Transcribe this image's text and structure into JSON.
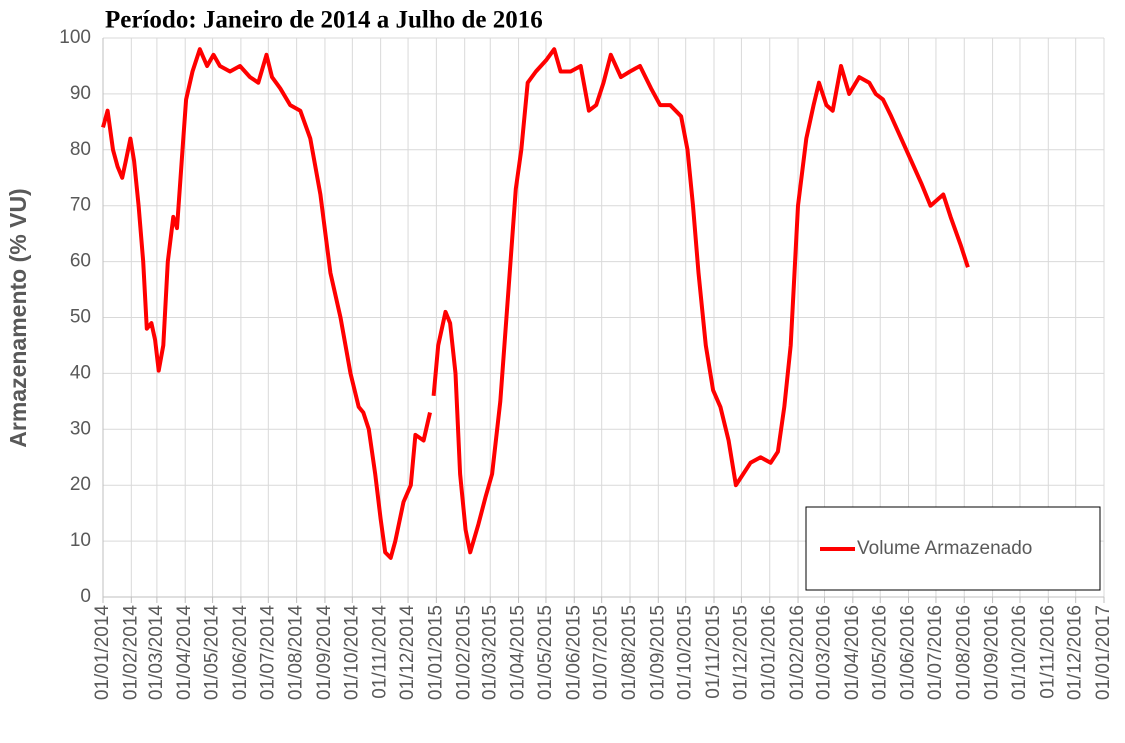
{
  "chart_data": {
    "type": "line",
    "title": "Período: Janeiro de 2014 a Julho de 2016",
    "y_label": "Armazenamento (% VU)",
    "grid": true,
    "legend": "lower right",
    "ylim": [
      0,
      100
    ],
    "yticks": [
      0,
      10,
      20,
      30,
      40,
      50,
      60,
      70,
      80,
      90,
      100
    ],
    "xlim": [
      "2014-01-01",
      "2017-01-01"
    ],
    "xticks": [
      {
        "value": "2014-01-01",
        "label": "01/01/2014"
      },
      {
        "value": "2014-02-01",
        "label": "01/02/2014"
      },
      {
        "value": "2014-03-01",
        "label": "01/03/2014"
      },
      {
        "value": "2014-04-01",
        "label": "01/04/2014"
      },
      {
        "value": "2014-05-01",
        "label": "01/05/2014"
      },
      {
        "value": "2014-06-01",
        "label": "01/06/2014"
      },
      {
        "value": "2014-07-01",
        "label": "01/07/2014"
      },
      {
        "value": "2014-08-01",
        "label": "01/08/2014"
      },
      {
        "value": "2014-09-01",
        "label": "01/09/2014"
      },
      {
        "value": "2014-10-01",
        "label": "01/10/2014"
      },
      {
        "value": "2014-11-01",
        "label": "01/11/2014"
      },
      {
        "value": "2014-12-01",
        "label": "01/12/2014"
      },
      {
        "value": "2015-01-01",
        "label": "01/01/2015"
      },
      {
        "value": "2015-02-01",
        "label": "01/02/2015"
      },
      {
        "value": "2015-03-01",
        "label": "01/03/2015"
      },
      {
        "value": "2015-04-01",
        "label": "01/04/2015"
      },
      {
        "value": "2015-05-01",
        "label": "01/05/2015"
      },
      {
        "value": "2015-06-01",
        "label": "01/06/2015"
      },
      {
        "value": "2015-07-01",
        "label": "01/07/2015"
      },
      {
        "value": "2015-08-01",
        "label": "01/08/2015"
      },
      {
        "value": "2015-09-01",
        "label": "01/09/2015"
      },
      {
        "value": "2015-10-01",
        "label": "01/10/2015"
      },
      {
        "value": "2015-11-01",
        "label": "01/11/2015"
      },
      {
        "value": "2015-12-01",
        "label": "01/12/2015"
      },
      {
        "value": "2016-01-01",
        "label": "01/01/2016"
      },
      {
        "value": "2016-02-01",
        "label": "01/02/2016"
      },
      {
        "value": "2016-03-01",
        "label": "01/03/2016"
      },
      {
        "value": "2016-04-01",
        "label": "01/04/2016"
      },
      {
        "value": "2016-05-01",
        "label": "01/05/2016"
      },
      {
        "value": "2016-06-01",
        "label": "01/06/2016"
      },
      {
        "value": "2016-07-01",
        "label": "01/07/2016"
      },
      {
        "value": "2016-08-01",
        "label": "01/08/2016"
      },
      {
        "value": "2016-09-01",
        "label": "01/09/2016"
      },
      {
        "value": "2016-10-01",
        "label": "01/10/2016"
      },
      {
        "value": "2016-11-01",
        "label": "01/11/2016"
      },
      {
        "value": "2016-12-01",
        "label": "01/12/2016"
      },
      {
        "value": "2017-01-01",
        "label": "01/01/2017"
      }
    ],
    "x": [
      "2014-01-01",
      "2014-01-06",
      "2014-01-12",
      "2014-01-17",
      "2014-01-22",
      "2014-01-26",
      "2014-01-31",
      "2014-02-04",
      "2014-02-09",
      "2014-02-14",
      "2014-02-18",
      "2014-02-23",
      "2014-02-27",
      "2014-03-03",
      "2014-03-08",
      "2014-03-13",
      "2014-03-19",
      "2014-03-23",
      "2014-03-29",
      "2014-04-02",
      "2014-04-09",
      "2014-04-17",
      "2014-04-25",
      "2014-05-02",
      "2014-05-09",
      "2014-05-20",
      "2014-05-31",
      "2014-06-11",
      "2014-06-20",
      "2014-06-29",
      "2014-07-05",
      "2014-07-14",
      "2014-07-25",
      "2014-08-05",
      "2014-08-16",
      "2014-08-27",
      "2014-09-07",
      "2014-09-18",
      "2014-09-29",
      "2014-10-08",
      "2014-10-13",
      "2014-10-19",
      "2014-10-26",
      "2014-11-01",
      "2014-11-06",
      "2014-11-12",
      "2014-11-17",
      "2014-11-26",
      "2014-12-04",
      "2014-12-09",
      "2014-12-18",
      "2014-12-25",
      "2014-12-28",
      "2014-12-29",
      "2015-01-03",
      "2015-01-11",
      "2015-01-16",
      "2015-01-22",
      "2015-01-27",
      "2015-02-02",
      "2015-02-07",
      "2015-02-16",
      "2015-02-24",
      "2015-03-03",
      "2015-03-12",
      "2015-03-21",
      "2015-03-29",
      "2015-04-04",
      "2015-04-11",
      "2015-04-20",
      "2015-05-01",
      "2015-05-10",
      "2015-05-17",
      "2015-05-28",
      "2015-06-08",
      "2015-06-17",
      "2015-06-25",
      "2015-07-03",
      "2015-07-11",
      "2015-07-22",
      "2015-08-01",
      "2015-08-12",
      "2015-08-24",
      "2015-09-03",
      "2015-09-14",
      "2015-09-26",
      "2015-10-03",
      "2015-10-09",
      "2015-10-15",
      "2015-10-23",
      "2015-10-31",
      "2015-11-08",
      "2015-11-17",
      "2015-11-25",
      "2015-12-03",
      "2015-12-11",
      "2015-12-22",
      "2016-01-02",
      "2016-01-10",
      "2016-01-17",
      "2016-01-24",
      "2016-02-01",
      "2016-02-10",
      "2016-02-18",
      "2016-02-24",
      "2016-03-03",
      "2016-03-10",
      "2016-03-19",
      "2016-03-28",
      "2016-04-08",
      "2016-04-19",
      "2016-04-26",
      "2016-05-04",
      "2016-05-13",
      "2016-05-24",
      "2016-06-04",
      "2016-06-15",
      "2016-06-25",
      "2016-07-09",
      "2016-07-17",
      "2016-07-28",
      "2016-08-05"
    ],
    "series": [
      {
        "name": "Volume Armazenado",
        "color": "#ff0000",
        "values": [
          84,
          87,
          80,
          77,
          75,
          78,
          82,
          78,
          70,
          60,
          48,
          49,
          46,
          40.5,
          45,
          60,
          68,
          66,
          80,
          89,
          94,
          98,
          95,
          97,
          95,
          94,
          95,
          93,
          92,
          97,
          93,
          91,
          88,
          87,
          82,
          72,
          58,
          50,
          40,
          34,
          33,
          30,
          22,
          14,
          8,
          7,
          10,
          17,
          20,
          29,
          28,
          33,
          null,
          36,
          45,
          51,
          49,
          40,
          22,
          12,
          8,
          13,
          18,
          22,
          35,
          55,
          73,
          80,
          92,
          94,
          96,
          98,
          94,
          94,
          95,
          87,
          88,
          92,
          97,
          93,
          94,
          95,
          91,
          88,
          88,
          86,
          80,
          70,
          58,
          45,
          37,
          34,
          28,
          20,
          22,
          24,
          25,
          24,
          26,
          34,
          45,
          70,
          82,
          88,
          92,
          88,
          87,
          95,
          90,
          93,
          92,
          90,
          89,
          86,
          82,
          78,
          74,
          70,
          72,
          68,
          63,
          59
        ]
      }
    ]
  }
}
